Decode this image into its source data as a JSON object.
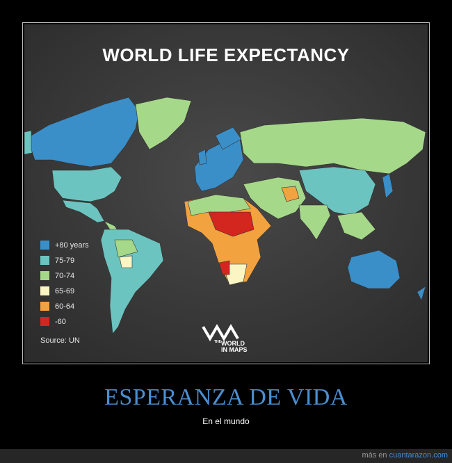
{
  "map": {
    "title": "WORLD LIFE EXPECTANCY",
    "legend": [
      {
        "label": "+80 years",
        "color": "#3a8fc9"
      },
      {
        "label": "75-79",
        "color": "#6cc4c0"
      },
      {
        "label": "70-74",
        "color": "#a6d88a"
      },
      {
        "label": "65-69",
        "color": "#fbf5c4"
      },
      {
        "label": "60-64",
        "color": "#f2a23e"
      },
      {
        "label": "-60",
        "color": "#d2261f"
      }
    ],
    "source": "Source: UN",
    "logo": {
      "line1": "THE",
      "line2": "WORLD",
      "line3": "IN MAPS"
    }
  },
  "caption": {
    "title": "ESPERANZA DE VIDA",
    "subtitle": "En el mundo"
  },
  "footer": {
    "prefix": "más en",
    "link": "cuantarazon.com"
  }
}
